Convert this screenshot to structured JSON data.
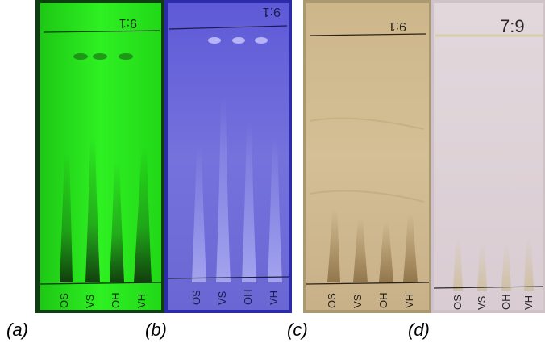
{
  "figure": {
    "panels": [
      {
        "label": "(a)",
        "solvent_ratio": "9:1",
        "lanes": [
          "OS",
          "VS",
          "OH",
          "VH"
        ],
        "colors": {
          "background": "#22e61a",
          "spots": "#1a4a12",
          "ink": "#0a2a08"
        }
      },
      {
        "label": "(b)",
        "solvent_ratio": "9:1",
        "lanes": [
          "OS",
          "VS",
          "OH",
          "VH"
        ],
        "colors": {
          "background": "#6d6ad6",
          "spots": "#b7b8ff",
          "ink": "#1c1c4a"
        }
      },
      {
        "label": "(c)",
        "solvent_ratio": "9:1",
        "lanes": [
          "OS",
          "VS",
          "OH",
          "VH"
        ],
        "colors": {
          "background": "#cbb488",
          "spots": "#8b6a3a",
          "ink": "#2a2218"
        }
      },
      {
        "label": "(d)",
        "solvent_ratio": "7:9",
        "lanes": [
          "OS",
          "VS",
          "OH",
          "VH"
        ],
        "colors": {
          "background": "#ddd2d6",
          "spots": "#cdbd86",
          "ink": "#2a2628"
        }
      }
    ]
  }
}
